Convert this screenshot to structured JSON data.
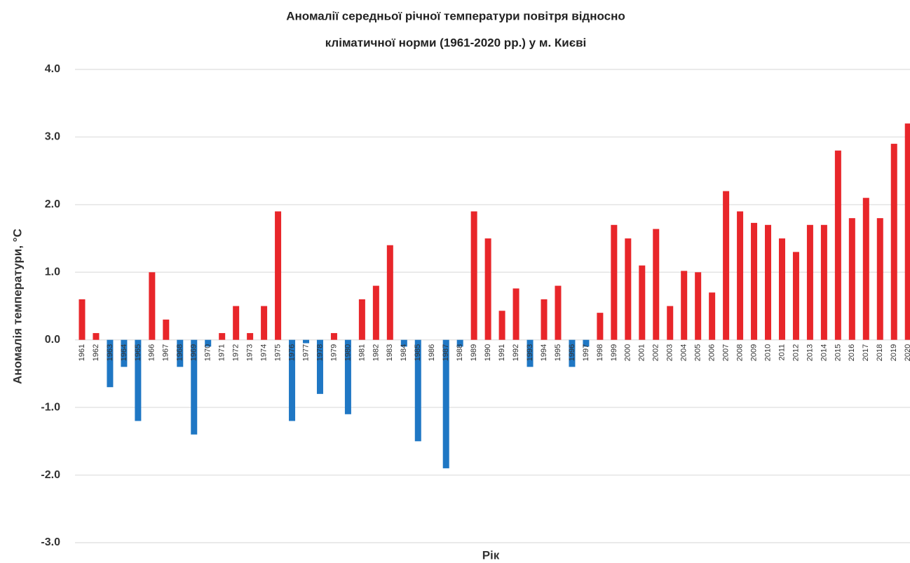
{
  "chart_data": {
    "type": "bar",
    "title": [
      "Аномалії середньої річної температури повітря відносно",
      "кліматичної норми (1961-2020 рр.) у м. Києві"
    ],
    "y_label": "Аномалія температури, °С",
    "x_label": "Рік",
    "categories": [
      "1961",
      "1962",
      "1963",
      "1964",
      "1965",
      "1966",
      "1967",
      "1968",
      "1969",
      "1970",
      "1971",
      "1972",
      "1973",
      "1974",
      "1975",
      "1976",
      "1977",
      "1978",
      "1979",
      "1980",
      "1981",
      "1982",
      "1983",
      "1984",
      "1985",
      "1986",
      "1987",
      "1988",
      "1989",
      "1990",
      "1991",
      "1992",
      "1993",
      "1994",
      "1995",
      "1996",
      "1997",
      "1998",
      "1999",
      "2000",
      "2001",
      "2002",
      "2003",
      "2004",
      "2005",
      "2006",
      "2007",
      "2008",
      "2009",
      "2010",
      "2011",
      "2012",
      "2013",
      "2014",
      "2015",
      "2016",
      "2017",
      "2018",
      "2019",
      "2020"
    ],
    "values": [
      0.6,
      0.1,
      -0.7,
      -0.4,
      -1.2,
      1.0,
      0.3,
      -0.4,
      -1.4,
      -0.1,
      0.1,
      0.5,
      0.1,
      0.5,
      1.9,
      -1.2,
      -0.05,
      -0.8,
      0.1,
      -1.1,
      0.6,
      0.8,
      1.4,
      -0.1,
      -1.5,
      0.0,
      -1.9,
      -0.1,
      1.9,
      1.5,
      0.43,
      0.76,
      -0.4,
      0.6,
      0.8,
      -0.4,
      -0.1,
      0.4,
      1.7,
      1.5,
      1.1,
      1.64,
      0.5,
      1.02,
      1.0,
      0.7,
      2.2,
      1.9,
      1.73,
      1.7,
      1.5,
      1.3,
      1.7,
      1.7,
      2.8,
      1.8,
      2.1,
      1.8,
      2.9,
      3.2
    ],
    "positive_color": "#e8262a",
    "negative_color": "#1f77c4",
    "ylim": [
      -3,
      4
    ],
    "yticks": [
      {
        "value": -3,
        "label": "-3.0"
      },
      {
        "value": -2,
        "label": "-2.0"
      },
      {
        "value": -1,
        "label": "-1.0"
      },
      {
        "value": 0,
        "label": "0.0"
      },
      {
        "value": 1,
        "label": "1.0"
      },
      {
        "value": 2,
        "label": "2.0"
      },
      {
        "value": 3,
        "label": "3.0"
      },
      {
        "value": 4,
        "label": "4.0"
      }
    ],
    "grid": true
  }
}
